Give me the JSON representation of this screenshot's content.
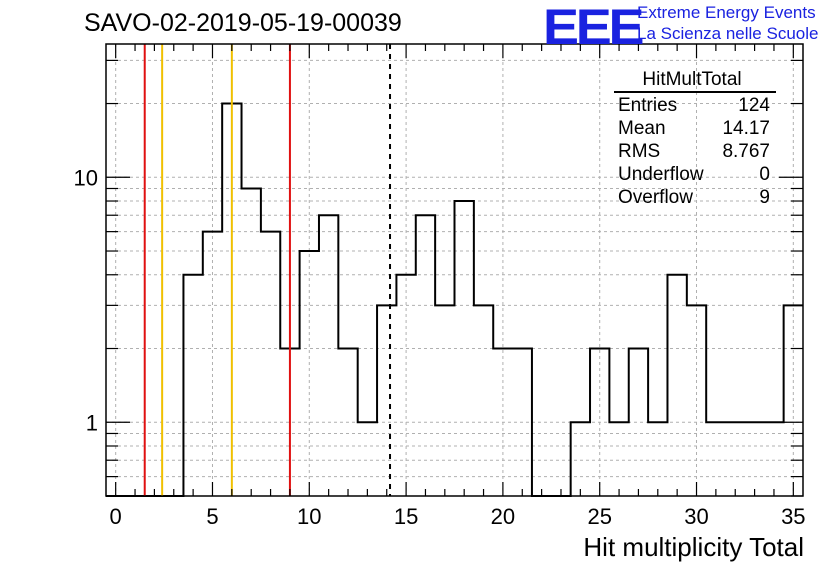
{
  "header": {
    "title": "SAVO-02-2019-05-19-00039",
    "logo_text": "EEE",
    "logo_line1": "Extreme Energy Events",
    "logo_line2": "La Scienza nelle Scuole"
  },
  "stats": {
    "name": "HitMultTotal",
    "rows": [
      {
        "label": "Entries",
        "value": "124"
      },
      {
        "label": "Mean",
        "value": "14.17"
      },
      {
        "label": "RMS",
        "value": "8.767"
      },
      {
        "label": "Underflow",
        "value": "0"
      },
      {
        "label": "Overflow",
        "value": "9"
      }
    ]
  },
  "colors": {
    "red_line": "#e01010",
    "yellow_line": "#f0c000",
    "histogram": "#000000",
    "grid": "#b0b0b0",
    "logo": "#1a22e0"
  },
  "chart_data": {
    "type": "histogram",
    "title": "SAVO-02-2019-05-19-00039",
    "xlabel": "Hit multiplicity Total",
    "ylabel": "",
    "y_scale": "log",
    "grid": true,
    "x_range": [
      -0.5,
      35.5
    ],
    "ylim": [
      0.5,
      35
    ],
    "x_ticks": [
      0,
      5,
      10,
      15,
      20,
      25,
      30,
      35
    ],
    "y_ticks": [
      1,
      10
    ],
    "bin_width": 1,
    "bin_centers": [
      0,
      1,
      2,
      3,
      4,
      5,
      6,
      7,
      8,
      9,
      10,
      11,
      12,
      13,
      14,
      15,
      16,
      17,
      18,
      19,
      20,
      21,
      22,
      23,
      24,
      25,
      26,
      27,
      28,
      29,
      30,
      31,
      32,
      33,
      34,
      35
    ],
    "counts": [
      0,
      0,
      0,
      0,
      4,
      6,
      20,
      9,
      6,
      2,
      5,
      7,
      2,
      1,
      3,
      4,
      7,
      3,
      8,
      3,
      2,
      2,
      0,
      0,
      1,
      2,
      1,
      2,
      1,
      4,
      3,
      1,
      1,
      1,
      1,
      3
    ],
    "vertical_lines": [
      {
        "x": 1.5,
        "color": "red",
        "style": "solid"
      },
      {
        "x": 2.4,
        "color": "yellow",
        "style": "solid"
      },
      {
        "x": 6.0,
        "color": "yellow",
        "style": "solid"
      },
      {
        "x": 9.0,
        "color": "red",
        "style": "solid"
      },
      {
        "x": 14.17,
        "color": "black",
        "style": "dashed"
      }
    ],
    "legend": "top-right"
  }
}
